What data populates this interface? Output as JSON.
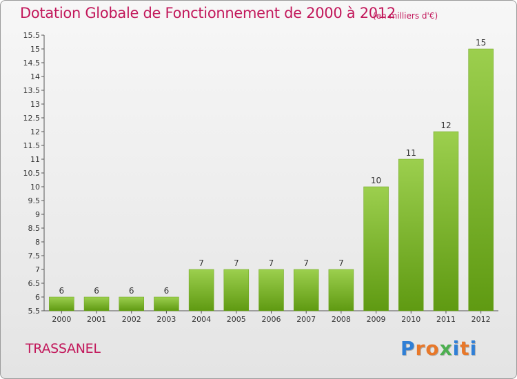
{
  "header": {
    "title": "Dotation Globale de Fonctionnement de 2000 à 2012",
    "subtitle": "(en milliers d'€)"
  },
  "footer": {
    "place": "TRASSANEL",
    "logo_text": "Proxiti"
  },
  "colors": {
    "accent": "#c2185b",
    "bar_top": "#9ccf4e",
    "bar_bottom": "#5f9a12"
  },
  "chart_data": {
    "type": "bar",
    "title": "Dotation Globale de Fonctionnement de 2000 à 2012",
    "subtitle": "(en milliers d'€)",
    "categories": [
      "2000",
      "2001",
      "2002",
      "2003",
      "2004",
      "2005",
      "2006",
      "2007",
      "2008",
      "2009",
      "2010",
      "2011",
      "2012"
    ],
    "values": [
      6,
      6,
      6,
      6,
      7,
      7,
      7,
      7,
      7,
      10,
      11,
      12,
      15
    ],
    "ylim": [
      5.5,
      15.5
    ],
    "yticks": [
      "5.5",
      "6",
      "6.5",
      "7",
      "7.5",
      "8",
      "8.5",
      "9",
      "9.5",
      "10",
      "10.5",
      "11",
      "11.5",
      "12",
      "12.5",
      "13",
      "13.5",
      "14",
      "14.5",
      "15",
      "15.5"
    ],
    "grid": false
  }
}
